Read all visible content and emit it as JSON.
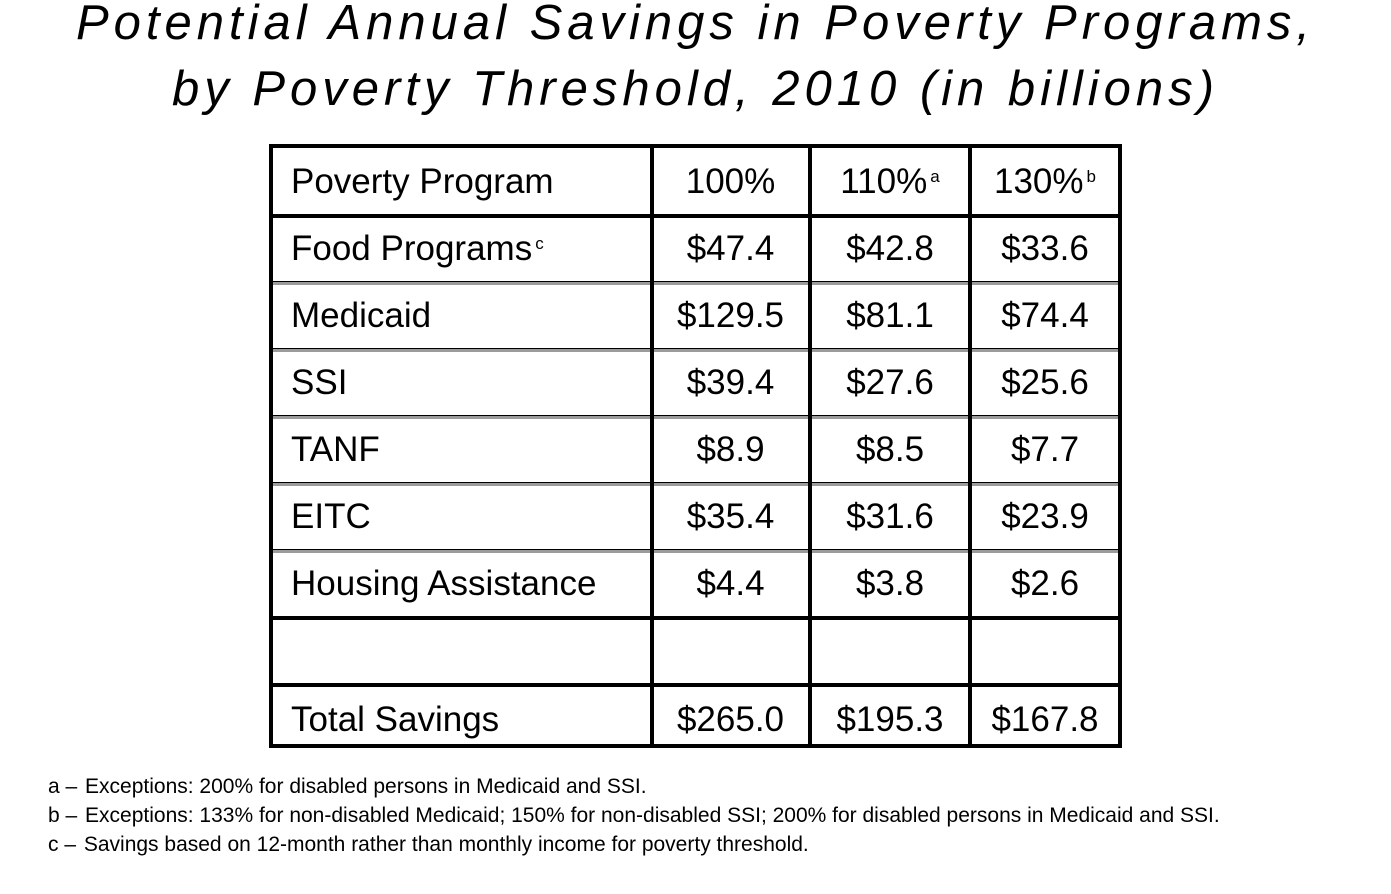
{
  "title": {
    "line1": "Potential Annual Savings in Poverty Programs,",
    "line2": "by Poverty Threshold, 2010 (in billions)"
  },
  "chart_data": {
    "type": "table",
    "columns": [
      {
        "label": "Poverty Program",
        "footnote": ""
      },
      {
        "label": "100%",
        "footnote": ""
      },
      {
        "label": "110%",
        "footnote": "a"
      },
      {
        "label": "130%",
        "footnote": "b"
      }
    ],
    "rows": [
      {
        "program": "Food Programs",
        "footnote": "c",
        "values": [
          "$47.4",
          "$42.8",
          "$33.6"
        ]
      },
      {
        "program": "Medicaid",
        "footnote": "",
        "values": [
          "$129.5",
          "$81.1",
          "$74.4"
        ]
      },
      {
        "program": "SSI",
        "footnote": "",
        "values": [
          "$39.4",
          "$27.6",
          "$25.6"
        ]
      },
      {
        "program": "TANF",
        "footnote": "",
        "values": [
          "$8.9",
          "$8.5",
          "$7.7"
        ]
      },
      {
        "program": "EITC",
        "footnote": "",
        "values": [
          "$35.4",
          "$31.6",
          "$23.9"
        ]
      },
      {
        "program": "Housing Assistance",
        "footnote": "",
        "values": [
          "$4.4",
          "$3.8",
          "$2.6"
        ]
      }
    ],
    "total": {
      "program": "Total Savings",
      "values": [
        "$265.0",
        "$195.3",
        "$167.8"
      ]
    }
  },
  "notes": [
    {
      "label": "a –",
      "text": "Exceptions: 200% for disabled persons in Medicaid and SSI."
    },
    {
      "label": "b –",
      "text": "Exceptions: 133% for non-disabled Medicaid; 150% for non-disabled SSI; 200% for disabled persons in Medicaid and SSI."
    },
    {
      "label": "c –",
      "text": "Savings based on 12-month rather than monthly income for poverty threshold."
    }
  ]
}
